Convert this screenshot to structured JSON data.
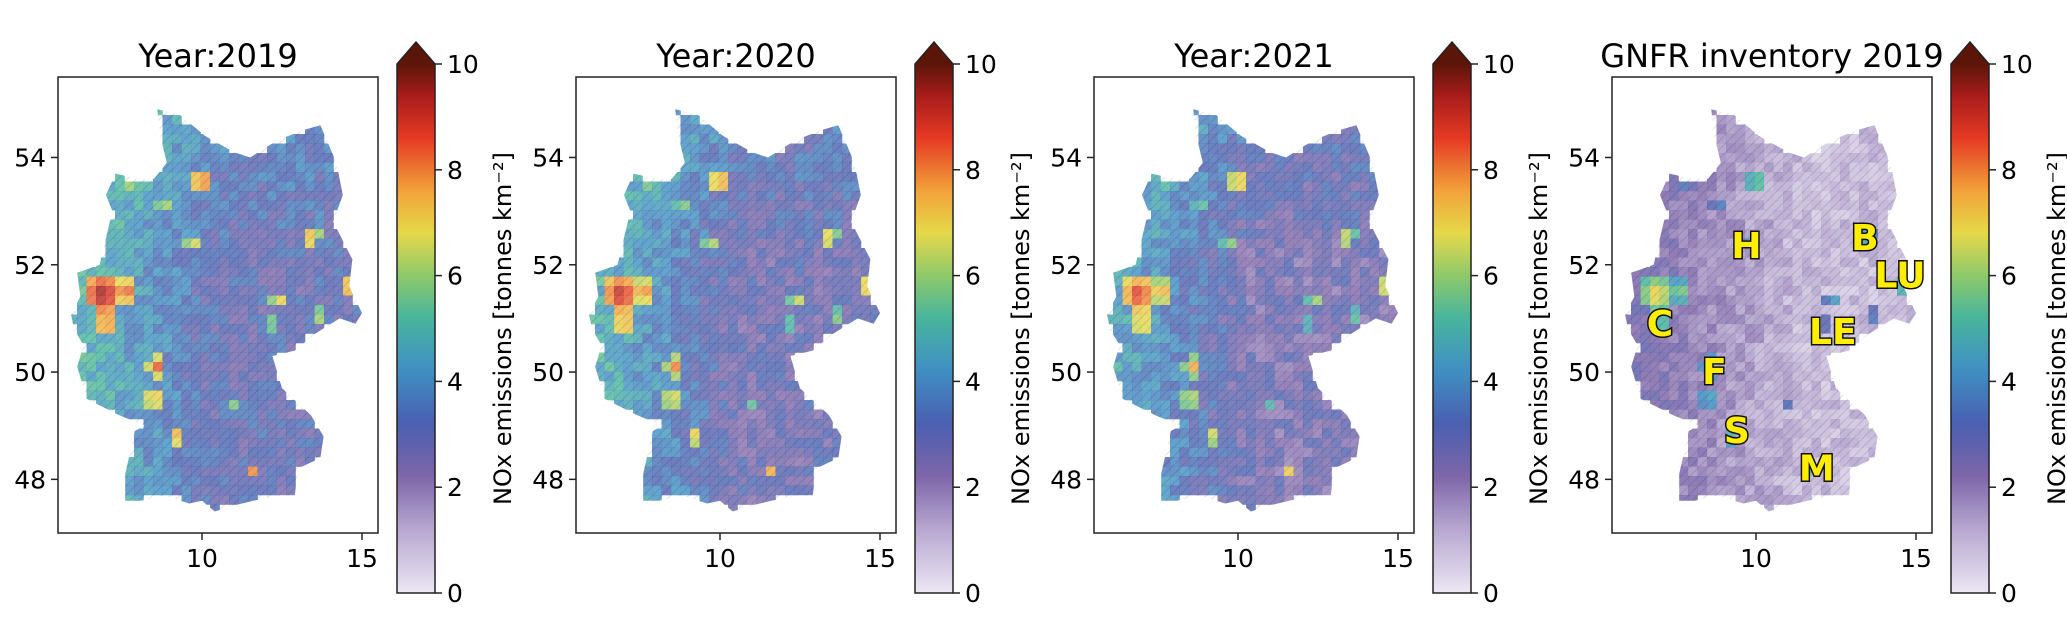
{
  "figure": {
    "panels": [
      {
        "title": "Year:2019",
        "style": "model"
      },
      {
        "title": "Year:2020",
        "style": "model"
      },
      {
        "title": "Year:2021",
        "style": "model"
      },
      {
        "title": "GNFR inventory 2019",
        "style": "inventory"
      }
    ],
    "x_ticks": [
      10,
      15
    ],
    "y_ticks": [
      48,
      50,
      52,
      54
    ],
    "x_range": [
      5.5,
      15.5
    ],
    "y_range": [
      47,
      55.5
    ],
    "colorbar": {
      "label": "NOx emissions [tonnes km⁻²]",
      "ticks": [
        0,
        2,
        4,
        6,
        8,
        10
      ],
      "range": [
        0,
        10
      ],
      "extend": "max",
      "colormap": "Spectral_r style: lavender → purple → blue → teal → green → yellow → orange → red → dark brown"
    },
    "city_labels": [
      {
        "text": "H",
        "lon": 9.7,
        "lat": 52.35
      },
      {
        "text": "B",
        "lon": 13.4,
        "lat": 52.5
      },
      {
        "text": "LU",
        "lon": 14.5,
        "lat": 51.8
      },
      {
        "text": "C",
        "lon": 7.0,
        "lat": 50.9
      },
      {
        "text": "LE",
        "lon": 12.4,
        "lat": 50.75
      },
      {
        "text": "F",
        "lon": 8.7,
        "lat": 50.0
      },
      {
        "text": "S",
        "lon": 9.4,
        "lat": 48.9
      },
      {
        "text": "M",
        "lon": 11.9,
        "lat": 48.2
      }
    ],
    "colors": {
      "low": "#e8e4f1",
      "mid_low": "#7a67aa",
      "mid": "#4f9ec9",
      "mid_high": "#86c07d",
      "high": "#f2cf47",
      "higher": "#f08d3c",
      "very_high": "#c32a33",
      "max": "#5a1a0e"
    }
  }
}
